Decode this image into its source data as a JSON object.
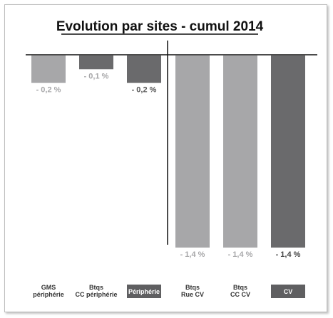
{
  "chart_data": {
    "type": "bar",
    "title": "Evolution par sites - cumul 2014",
    "categories": [
      {
        "lines": [
          "GMS",
          "périphérie"
        ],
        "highlight": false
      },
      {
        "lines": [
          "Btqs",
          "CC périphérie"
        ],
        "highlight": false
      },
      {
        "lines": [
          "Périphérie"
        ],
        "highlight": true
      },
      {
        "lines": [
          "Btqs",
          "Rue CV"
        ],
        "highlight": false
      },
      {
        "lines": [
          "Btqs",
          "CC CV"
        ],
        "highlight": false
      },
      {
        "lines": [
          "CV"
        ],
        "highlight": true
      }
    ],
    "values": [
      -0.2,
      -0.1,
      -0.2,
      -1.4,
      -1.4,
      -1.4
    ],
    "value_labels": [
      "- 0,2 %",
      "- 0,1 %",
      "- 0,2 %",
      "- 1,4 %",
      "- 1,4 %",
      "- 1,4 %"
    ],
    "colors": [
      "#a7a7a9",
      "#6a6a6c",
      "#6a6a6c",
      "#a7a7a9",
      "#a7a7a9",
      "#6a6a6c"
    ],
    "label_colors": [
      "#a7a7a9",
      "#a7a7a9",
      "#555555",
      "#a7a7a9",
      "#a7a7a9",
      "#444444"
    ],
    "highlight_color": "#5f5f61",
    "ylim": [
      -1.4,
      0
    ],
    "grid": false,
    "legend": "none"
  }
}
